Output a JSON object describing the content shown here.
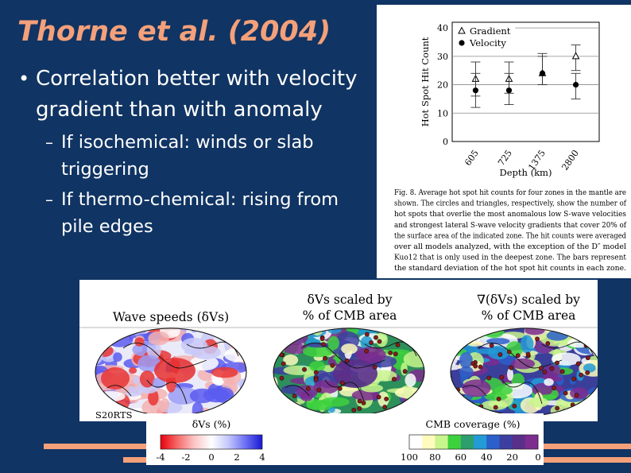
{
  "slide": {
    "title": "Thorne et al. (2004)",
    "bullet": "Correlation better with velocity gradient than with anomaly",
    "sub_bullets": [
      "If isochemical: winds or slab triggering",
      "If thermo-chemical: rising from pile edges"
    ],
    "bullet_glyph": "•",
    "dash_glyph": "–"
  },
  "figure8": {
    "caption_lines": [
      "Fig. 8. Average hot spot hit counts for four zones in the mantle are",
      "shown. The circles and triangles, respectively, show the number of",
      "hot spots that overlie the most anomalous low S-wave velocities",
      "and strongest lateral S-wave velocity gradients that cover 20% of",
      "the surface area of the indicated zone. The hit counts were averaged",
      "over all models analyzed, with the exception of the D″ model",
      "Kuo12 that is only used in the deepest zone. The bars represent",
      "the standard deviation of the hot spot hit counts in each zone."
    ],
    "chart_data": {
      "type": "scatter",
      "xlabel": "Depth (km)",
      "ylabel": "Hot Spot Hit Count",
      "ylim": [
        0,
        42
      ],
      "y_ticks": [
        0,
        10,
        20,
        30,
        40
      ],
      "categories": [
        "605",
        "725",
        "1375",
        "2800"
      ],
      "grid": "horizontal",
      "legend_position": "top-left",
      "series": [
        {
          "name": "Gradient",
          "marker": "open-triangle",
          "values": [
            22,
            22,
            24,
            30
          ],
          "err_low": [
            16,
            17,
            20,
            25
          ],
          "err_high": [
            28,
            28,
            31,
            34
          ]
        },
        {
          "name": "Velocity",
          "marker": "filled-circle",
          "values": [
            18,
            18,
            24,
            20
          ],
          "err_low": [
            12,
            13,
            20,
            15
          ],
          "err_high": [
            24,
            24,
            30,
            24
          ]
        }
      ]
    }
  },
  "maps": {
    "headers": [
      "Wave speeds (δVs)",
      "δVs scaled by % of CMB area",
      "∇(δVs) scaled by % of CMB area"
    ],
    "header_lines": [
      [
        "Wave speeds (δVs)"
      ],
      [
        "δVs scaled by",
        "% of CMB area"
      ],
      [
        "∇(δVs) scaled by",
        "% of CMB area"
      ]
    ],
    "model_label": "S20RTS",
    "scale_left": {
      "title": "δVs (%)",
      "ticks": [
        "-4",
        "-2",
        "0",
        "2",
        "4"
      ],
      "colors": [
        "#e8000a",
        "#f66a6a",
        "#fbc6c6",
        "#ffffff",
        "#c4c8fb",
        "#6e70f3",
        "#1818d4"
      ]
    },
    "scale_right": {
      "title": "CMB coverage (%)",
      "ticks": [
        "100",
        "80",
        "60",
        "40",
        "20",
        "0"
      ],
      "colors": [
        "#ffffff",
        "#fffbbd",
        "#c8f58c",
        "#3ed13e",
        "#2e9e6e",
        "#239bd6",
        "#2b5fc9",
        "#3d3fa0",
        "#5a2f8a",
        "#7d2c8f"
      ]
    }
  }
}
